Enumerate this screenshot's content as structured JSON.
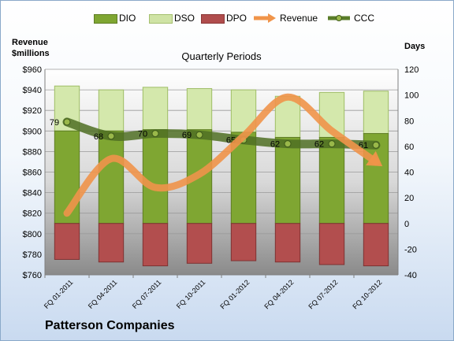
{
  "legend": [
    {
      "label": "DIO",
      "color": "#7fa632",
      "kind": "bar"
    },
    {
      "label": "DSO",
      "color": "#cfe3a5",
      "kind": "bar"
    },
    {
      "label": "DPO",
      "color": "#b04d4d",
      "kind": "bar"
    },
    {
      "label": "Revenue",
      "color": "#f0944a",
      "kind": "arrow"
    },
    {
      "label": "CCC",
      "color": "#5a7d2a",
      "kind": "line"
    }
  ],
  "labels": {
    "left_axis_title_1": "Revenue",
    "left_axis_title_2": "$millions",
    "right_axis_title": "Days",
    "brand": "Patterson Companies"
  },
  "chart_data": {
    "type": "bar",
    "title": "Quarterly Periods",
    "categories": [
      "FQ 01-2011",
      "FQ 04-2011",
      "FQ 07-2011",
      "FQ 10-2011",
      "FQ 01-2012",
      "FQ 04-2012",
      "FQ 07-2012",
      "FQ 10-2012"
    ],
    "left_axis": {
      "label": "Revenue $millions",
      "min": 760,
      "max": 960,
      "step": 20,
      "tick_labels": [
        "$760",
        "$780",
        "$800",
        "$820",
        "$840",
        "$860",
        "$880",
        "$900",
        "$920",
        "$940",
        "$960"
      ]
    },
    "right_axis": {
      "label": "Days",
      "min": -40,
      "max": 120,
      "step": 20,
      "tick_labels": [
        "-40",
        "-20",
        "0",
        "20",
        "40",
        "60",
        "80",
        "100",
        "120"
      ]
    },
    "series": [
      {
        "name": "DIO",
        "axis": "right",
        "values": [
          72,
          72,
          73,
          73,
          71,
          67,
          67,
          70
        ]
      },
      {
        "name": "DSO",
        "axis": "right",
        "values": [
          35,
          32,
          33,
          32,
          33,
          32,
          35,
          33
        ]
      },
      {
        "name": "DPO",
        "axis": "right",
        "values": [
          -28,
          -30,
          -33,
          -31,
          -29,
          -30,
          -32,
          -33
        ]
      },
      {
        "name": "Revenue",
        "axis": "left",
        "values": [
          820,
          873,
          845,
          858,
          895,
          933,
          900,
          870
        ]
      },
      {
        "name": "CCC",
        "axis": "right",
        "values": [
          79,
          68,
          70,
          69,
          65,
          62,
          62,
          61
        ],
        "data_labels": [
          "79",
          "68",
          "70",
          "69",
          "65",
          "62",
          "62",
          "61"
        ]
      }
    ],
    "grid": true,
    "legend_position": "top"
  }
}
